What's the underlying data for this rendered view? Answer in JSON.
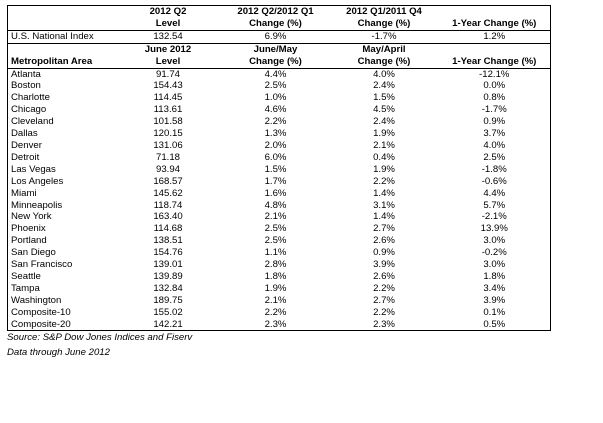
{
  "national": {
    "header": {
      "c1": "",
      "c2a": "2012 Q2",
      "c2b": "Level",
      "c3a": "2012 Q2/2012 Q1",
      "c3b": "Change (%)",
      "c4a": "2012 Q1/2011 Q4",
      "c4b": "Change (%)",
      "c5a": "",
      "c5b": "1-Year Change (%)"
    },
    "row": {
      "name": "U.S. National Index",
      "level": "132.54",
      "qoq": "6.9%",
      "prev": "-1.7%",
      "yoy": "1.2%"
    }
  },
  "metro": {
    "header": {
      "c1a": "",
      "c1b": "Metropolitan Area",
      "c2a": "June 2012",
      "c2b": "Level",
      "c3a": "June/May",
      "c3b": "Change (%)",
      "c4a": "May/April",
      "c4b": "Change (%)",
      "c5a": "",
      "c5b": "1-Year Change (%)"
    },
    "rows": [
      {
        "name": "Atlanta",
        "level": "91.74",
        "mom": "4.4%",
        "prev": "4.0%",
        "yoy": "-12.1%"
      },
      {
        "name": "Boston",
        "level": "154.43",
        "mom": "2.5%",
        "prev": "2.4%",
        "yoy": "0.0%"
      },
      {
        "name": "Charlotte",
        "level": "114.45",
        "mom": "1.0%",
        "prev": "1.5%",
        "yoy": "0.8%"
      },
      {
        "name": "Chicago",
        "level": "113.61",
        "mom": "4.6%",
        "prev": "4.5%",
        "yoy": "-1.7%"
      },
      {
        "name": "Cleveland",
        "level": "101.58",
        "mom": "2.2%",
        "prev": "2.4%",
        "yoy": "0.9%"
      },
      {
        "name": "Dallas",
        "level": "120.15",
        "mom": "1.3%",
        "prev": "1.9%",
        "yoy": "3.7%"
      },
      {
        "name": "Denver",
        "level": "131.06",
        "mom": "2.0%",
        "prev": "2.1%",
        "yoy": "4.0%"
      },
      {
        "name": "Detroit",
        "level": "71.18",
        "mom": "6.0%",
        "prev": "0.4%",
        "yoy": "2.5%"
      },
      {
        "name": "Las Vegas",
        "level": "93.94",
        "mom": "1.5%",
        "prev": "1.9%",
        "yoy": "-1.8%"
      },
      {
        "name": "Los Angeles",
        "level": "168.57",
        "mom": "1.7%",
        "prev": "2.2%",
        "yoy": "-0.6%"
      },
      {
        "name": "Miami",
        "level": "145.62",
        "mom": "1.6%",
        "prev": "1.4%",
        "yoy": "4.4%"
      },
      {
        "name": "Minneapolis",
        "level": "118.74",
        "mom": "4.8%",
        "prev": "3.1%",
        "yoy": "5.7%"
      },
      {
        "name": "New York",
        "level": "163.40",
        "mom": "2.1%",
        "prev": "1.4%",
        "yoy": "-2.1%"
      },
      {
        "name": "Phoenix",
        "level": "114.68",
        "mom": "2.5%",
        "prev": "2.7%",
        "yoy": "13.9%"
      },
      {
        "name": "Portland",
        "level": "138.51",
        "mom": "2.5%",
        "prev": "2.6%",
        "yoy": "3.0%"
      },
      {
        "name": "San Diego",
        "level": "154.76",
        "mom": "1.1%",
        "prev": "0.9%",
        "yoy": "-0.2%"
      },
      {
        "name": "San Francisco",
        "level": "139.01",
        "mom": "2.8%",
        "prev": "3.9%",
        "yoy": "3.0%"
      },
      {
        "name": "Seattle",
        "level": "139.89",
        "mom": "1.8%",
        "prev": "2.6%",
        "yoy": "1.8%"
      },
      {
        "name": "Tampa",
        "level": "132.84",
        "mom": "1.9%",
        "prev": "2.2%",
        "yoy": "3.4%"
      },
      {
        "name": "Washington",
        "level": "189.75",
        "mom": "2.1%",
        "prev": "2.7%",
        "yoy": "3.9%"
      },
      {
        "name": "Composite-10",
        "level": "155.02",
        "mom": "2.2%",
        "prev": "2.2%",
        "yoy": "0.1%"
      },
      {
        "name": "Composite-20",
        "level": "142.21",
        "mom": "2.3%",
        "prev": "2.3%",
        "yoy": "0.5%"
      }
    ]
  },
  "footer": {
    "source": "Source: S&P Dow Jones Indices and Fiserv",
    "note": "Data through June 2012"
  }
}
